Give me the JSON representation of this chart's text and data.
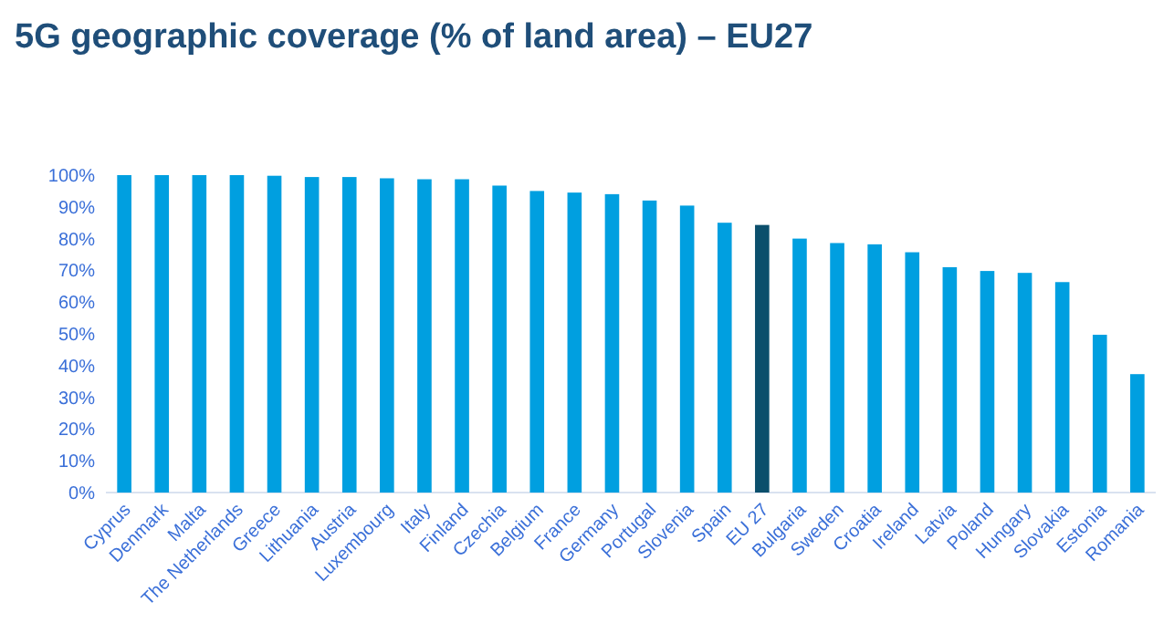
{
  "chart_data": {
    "type": "bar",
    "title": "5G geographic coverage (% of land area) – EU27",
    "categories": [
      "Cyprus",
      "Denmark",
      "Malta",
      "The Netherlands",
      "Greece",
      "Lithuania",
      "Austria",
      "Luxembourg",
      "Italy",
      "Finland",
      "Czechia",
      "Belgium",
      "France",
      "Germany",
      "Portugal",
      "Slovenia",
      "Spain",
      "EU 27",
      "Bulgaria",
      "Sweden",
      "Croatia",
      "Ireland",
      "Latvia",
      "Poland",
      "Hungary",
      "Slovakia",
      "Estonia",
      "Romania"
    ],
    "values": [
      100,
      100,
      100,
      100,
      99.8,
      99.4,
      99.4,
      99,
      98.7,
      98.7,
      96.7,
      95,
      94.5,
      94,
      92,
      90.4,
      85,
      84.3,
      80,
      78.6,
      78.2,
      75.7,
      71,
      69.8,
      69.2,
      66.3,
      49.7,
      37.3
    ],
    "colors": [
      "#009fe0",
      "#009fe0",
      "#009fe0",
      "#009fe0",
      "#009fe0",
      "#009fe0",
      "#009fe0",
      "#009fe0",
      "#009fe0",
      "#009fe0",
      "#009fe0",
      "#009fe0",
      "#009fe0",
      "#009fe0",
      "#009fe0",
      "#009fe0",
      "#009fe0",
      "#0b4f6c",
      "#009fe0",
      "#009fe0",
      "#009fe0",
      "#009fe0",
      "#009fe0",
      "#009fe0",
      "#009fe0",
      "#009fe0",
      "#009fe0",
      "#009fe0"
    ],
    "ylim": [
      0,
      100
    ],
    "yticks": [
      {
        "value": 0,
        "label": "0%"
      },
      {
        "value": 10,
        "label": "10%"
      },
      {
        "value": 20,
        "label": "20%"
      },
      {
        "value": 30,
        "label": "30%"
      },
      {
        "value": 40,
        "label": "40%"
      },
      {
        "value": 50,
        "label": "50%"
      },
      {
        "value": 60,
        "label": "60%"
      },
      {
        "value": 70,
        "label": "70%"
      },
      {
        "value": 80,
        "label": "80%"
      },
      {
        "value": 90,
        "label": "90%"
      },
      {
        "value": 100,
        "label": "100%"
      }
    ],
    "grid": false
  }
}
